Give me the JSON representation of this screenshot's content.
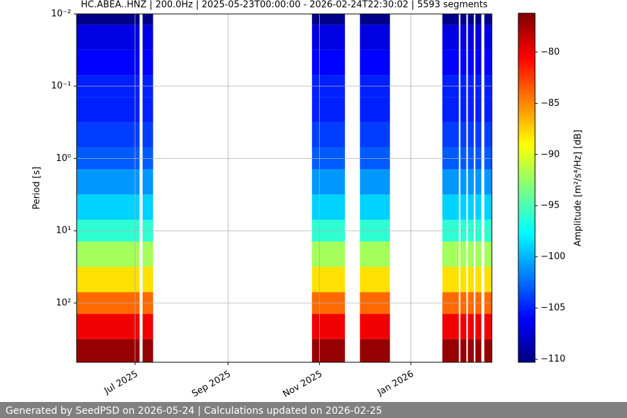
{
  "chart_data": {
    "type": "spectrogram",
    "title": "HC.ABEA..HNZ | 200.0Hz | 2025-05-23T00:00:00 - 2026-02-24T22:30:02 | 5593 segments",
    "y_label": "Period [s]",
    "y_scale": "log",
    "y_inverted": true,
    "xlim": [
      "2025-05-23",
      "2026-02-24"
    ],
    "xticks": [
      {
        "value": "2025-07-01",
        "label": "Jul 2025"
      },
      {
        "value": "2025-09-01",
        "label": "Sep 2025"
      },
      {
        "value": "2025-11-01",
        "label": "Nov 2025"
      },
      {
        "value": "2026-01-01",
        "label": "Jan 2026"
      }
    ],
    "ylim": [
      0.01,
      660
    ],
    "yticks": [
      {
        "value": 0.01,
        "label": "10⁻²"
      },
      {
        "value": 0.1,
        "label": "10⁻¹"
      },
      {
        "value": 1,
        "label": "10⁰"
      },
      {
        "value": 10,
        "label": "10¹"
      },
      {
        "value": 100,
        "label": "10²"
      }
    ],
    "grid": true,
    "data_ranges": [
      [
        "2025-05-23",
        "2025-07-04"
      ],
      [
        "2025-07-06",
        "2025-07-13"
      ],
      [
        "2025-10-27",
        "2025-11-18"
      ],
      [
        "2025-11-28",
        "2025-12-18"
      ],
      [
        "2026-01-22",
        "2026-02-02"
      ],
      [
        "2026-02-03",
        "2026-02-07"
      ],
      [
        "2026-02-08",
        "2026-02-12"
      ],
      [
        "2026-02-13",
        "2026-02-17"
      ],
      [
        "2026-02-19",
        "2026-02-24"
      ]
    ],
    "periods": [
      0.01,
      0.02,
      0.05,
      0.1,
      0.2,
      0.5,
      1,
      2,
      5,
      10,
      20,
      50,
      100,
      200,
      500
    ],
    "amplitude": [
      -110,
      -107,
      -106,
      -105,
      -105,
      -104,
      -103,
      -101,
      -99,
      -96,
      -92,
      -88,
      -84,
      -80,
      -77
    ],
    "colormap": "jet",
    "clim": [
      -110.3,
      -76.2
    ],
    "cticks": [
      {
        "value": -110,
        "label": "−110"
      },
      {
        "value": -105,
        "label": "−105"
      },
      {
        "value": -100,
        "label": "−100"
      },
      {
        "value": -95,
        "label": "−95"
      },
      {
        "value": -90,
        "label": "−90"
      },
      {
        "value": -85,
        "label": "−85"
      },
      {
        "value": -80,
        "label": "−80"
      }
    ],
    "colorbar_label": "Amplitude [m²/s⁴/Hz] [dB]"
  },
  "footer": "Generated by SeedPSD on 2026-05-24 | Calculations updated on 2026-02-25"
}
